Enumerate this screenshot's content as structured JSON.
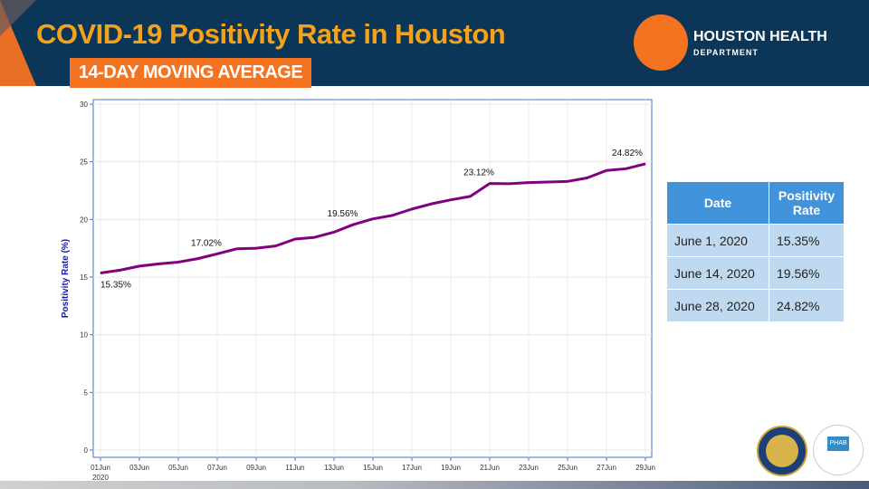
{
  "header": {
    "title": "COVID-19 Positivity Rate in Houston",
    "subtitle": "14-DAY MOVING AVERAGE",
    "logo_line1": "HOUSTON HEALTH",
    "logo_line2": "DEPARTMENT"
  },
  "colors": {
    "header_bg": "#0b3657",
    "accent": "#f47321",
    "title": "#f5a21b",
    "line": "#800080",
    "axis": "#4472c4"
  },
  "table": {
    "headers": [
      "Date",
      "Positivity Rate"
    ],
    "rows": [
      [
        "June 1, 2020",
        "15.35%"
      ],
      [
        "June 14, 2020",
        "19.56%"
      ],
      [
        "June 28, 2020",
        "24.82%"
      ]
    ]
  },
  "chart_data": {
    "type": "line",
    "title": "",
    "xlabel": "",
    "ylabel": "Positivity Rate (%)",
    "ylim": [
      0,
      30
    ],
    "yticks": [
      "0",
      "5",
      "10",
      "15",
      "20",
      "25",
      "30"
    ],
    "xticks": [
      "01Jun",
      "03Jun",
      "05Jun",
      "07Jun",
      "09Jun",
      "11Jun",
      "13Jun",
      "15Jun",
      "17Jun",
      "19Jun",
      "21Jun",
      "23Jun",
      "25Jun",
      "27Jun",
      "29Jun"
    ],
    "xtick_sub": "2020",
    "series": [
      {
        "name": "Positivity Rate",
        "values": [
          15.35,
          15.6,
          15.95,
          16.15,
          16.3,
          16.6,
          17.02,
          17.45,
          17.5,
          17.7,
          18.3,
          18.45,
          18.9,
          19.56,
          20.05,
          20.35,
          20.9,
          21.35,
          21.7,
          22.0,
          23.12,
          23.1,
          23.2,
          23.25,
          23.3,
          23.6,
          24.25,
          24.4,
          24.82
        ]
      }
    ],
    "annotations": [
      {
        "index": 0,
        "text": "15.35%",
        "pos": "below"
      },
      {
        "index": 6,
        "text": "17.02%",
        "pos": "above"
      },
      {
        "index": 13,
        "text": "19.56%",
        "pos": "above"
      },
      {
        "index": 20,
        "text": "23.12%",
        "pos": "above"
      },
      {
        "index": 28,
        "text": "24.82%",
        "pos": "above"
      }
    ]
  }
}
